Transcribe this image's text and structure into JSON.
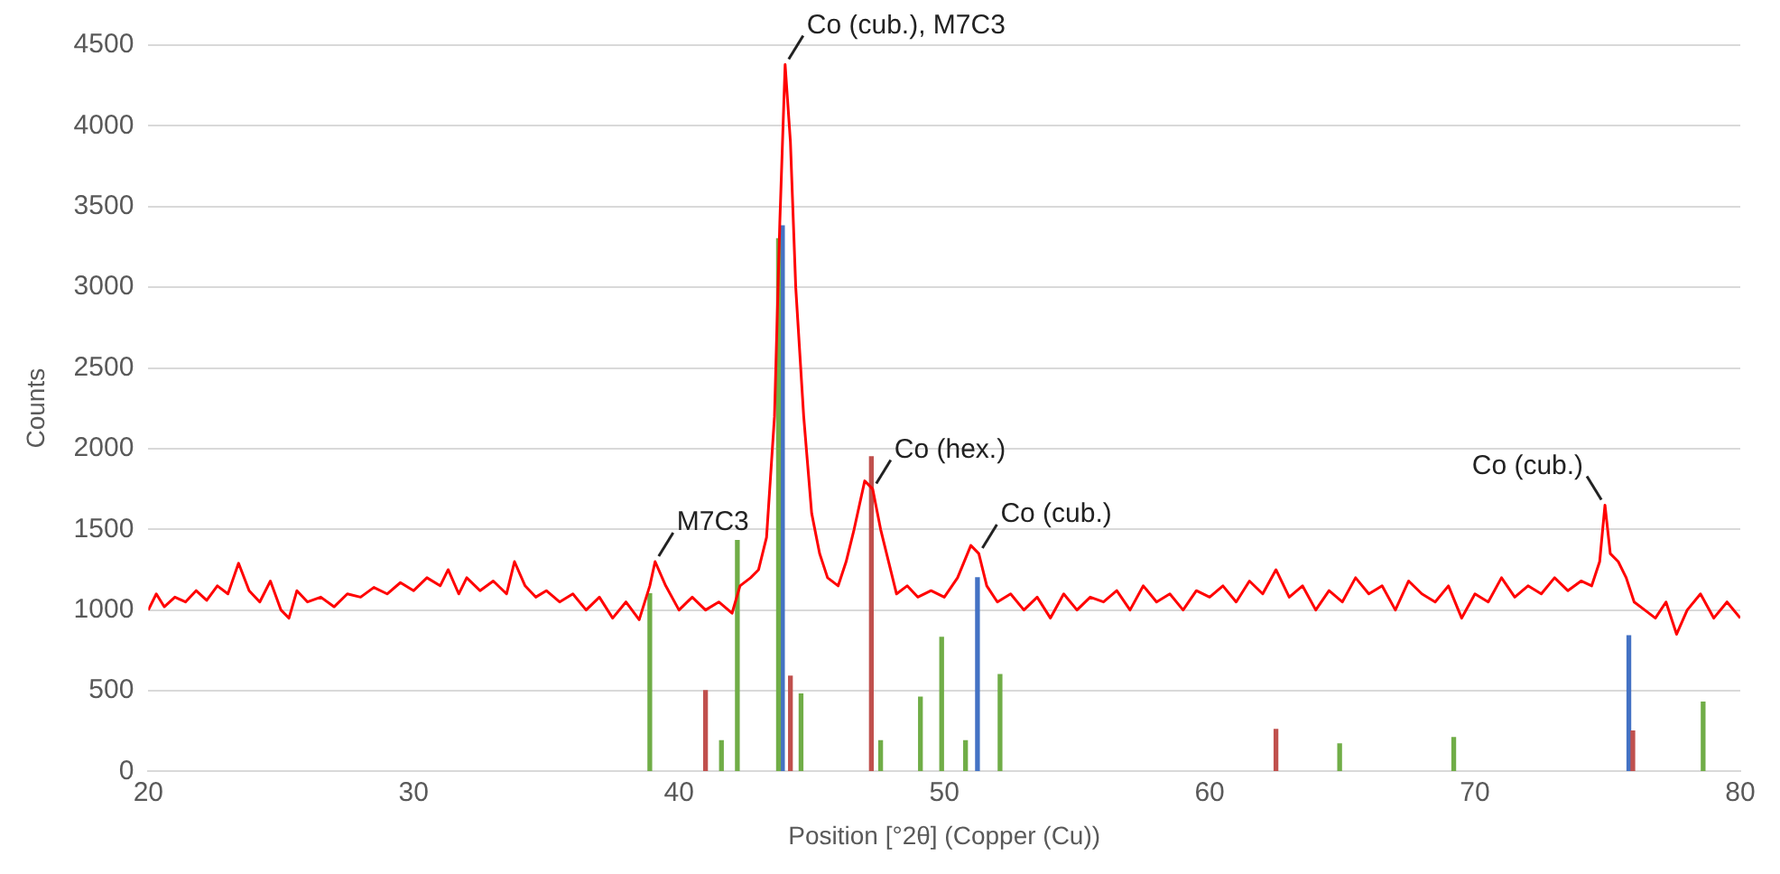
{
  "chart_data": {
    "type": "line",
    "xlabel": "Position [°2θ] (Copper (Cu))",
    "ylabel": "Counts",
    "xlim": [
      20,
      80
    ],
    "xticks": [
      20,
      30,
      40,
      50,
      60,
      70,
      80
    ],
    "ylim": [
      0,
      4500
    ],
    "yticks": [
      0,
      500,
      1000,
      1500,
      2000,
      2500,
      3000,
      3500,
      4000,
      4500
    ],
    "grid": "y",
    "legend": false,
    "marker": "none",
    "series": [
      {
        "color": "#ff0000",
        "x": [
          20,
          20.3,
          20.6,
          21,
          21.4,
          21.8,
          22.2,
          22.6,
          23,
          23.4,
          23.8,
          24.2,
          24.6,
          25,
          25.3,
          25.6,
          26,
          26.5,
          27,
          27.5,
          28,
          28.5,
          29,
          29.5,
          30,
          30.5,
          31,
          31.3,
          31.7,
          32,
          32.5,
          33,
          33.5,
          33.8,
          34.2,
          34.6,
          35,
          35.5,
          36,
          36.5,
          37,
          37.5,
          38,
          38.5,
          38.9,
          39.1,
          39.5,
          40,
          40.5,
          41,
          41.5,
          42,
          42.3,
          42.7,
          43,
          43.3,
          43.6,
          43.8,
          44,
          44.2,
          44.4,
          44.7,
          45,
          45.3,
          45.6,
          46,
          46.3,
          46.6,
          47,
          47.3,
          47.6,
          47.9,
          48.2,
          48.6,
          49,
          49.5,
          50,
          50.5,
          51,
          51.3,
          51.6,
          52,
          52.5,
          53,
          53.5,
          54,
          54.5,
          55,
          55.5,
          56,
          56.5,
          57,
          57.5,
          58,
          58.5,
          59,
          59.5,
          60,
          60.5,
          61,
          61.5,
          62,
          62.5,
          63,
          63.5,
          64,
          64.5,
          65,
          65.5,
          66,
          66.5,
          67,
          67.5,
          68,
          68.5,
          69,
          69.5,
          70,
          70.5,
          71,
          71.5,
          72,
          72.5,
          73,
          73.5,
          74,
          74.4,
          74.7,
          74.9,
          75.1,
          75.4,
          75.7,
          76,
          76.4,
          76.8,
          77.2,
          77.6,
          78,
          78.5,
          79,
          79.5,
          80
        ],
        "values": [
          1000,
          1100,
          1020,
          1080,
          1050,
          1120,
          1060,
          1150,
          1100,
          1290,
          1120,
          1050,
          1180,
          1000,
          950,
          1120,
          1050,
          1080,
          1020,
          1100,
          1080,
          1140,
          1100,
          1170,
          1120,
          1200,
          1150,
          1250,
          1100,
          1200,
          1120,
          1180,
          1100,
          1300,
          1150,
          1080,
          1120,
          1050,
          1100,
          1000,
          1080,
          950,
          1050,
          940,
          1150,
          1300,
          1150,
          1000,
          1080,
          1000,
          1050,
          980,
          1150,
          1200,
          1250,
          1450,
          2200,
          3400,
          4380,
          3900,
          3000,
          2200,
          1600,
          1350,
          1200,
          1150,
          1300,
          1500,
          1800,
          1750,
          1500,
          1300,
          1100,
          1150,
          1080,
          1120,
          1080,
          1200,
          1400,
          1350,
          1150,
          1050,
          1100,
          1000,
          1080,
          950,
          1100,
          1000,
          1080,
          1050,
          1120,
          1000,
          1150,
          1050,
          1100,
          1000,
          1120,
          1080,
          1150,
          1050,
          1180,
          1100,
          1250,
          1080,
          1150,
          1000,
          1120,
          1050,
          1200,
          1100,
          1150,
          1000,
          1180,
          1100,
          1050,
          1150,
          950,
          1100,
          1050,
          1200,
          1080,
          1150,
          1100,
          1200,
          1120,
          1180,
          1150,
          1300,
          1650,
          1350,
          1300,
          1200,
          1050,
          1000,
          950,
          1050,
          850,
          1000,
          1100,
          950,
          1050,
          950
        ]
      },
      {
        "type": "bar",
        "color": "#70ad47",
        "x": [
          38.9,
          41.6,
          42.2,
          43.75,
          44.6,
          47.6,
          49.1,
          49.9,
          50.8,
          52.1,
          64.9,
          69.2,
          78.6
        ],
        "values": [
          1100,
          190,
          1430,
          3300,
          480,
          190,
          460,
          830,
          190,
          600,
          170,
          210,
          430
        ]
      },
      {
        "type": "bar",
        "color": "#c0504d",
        "x": [
          41.0,
          44.2,
          47.25,
          62.5,
          75.95
        ],
        "values": [
          500,
          590,
          1950,
          260,
          250
        ]
      },
      {
        "type": "bar",
        "color": "#4472c4",
        "x": [
          43.9,
          51.25,
          75.8
        ],
        "values": [
          3380,
          1200,
          840
        ]
      }
    ],
    "annotations": [
      {
        "text": "M7C3",
        "x": 39.1,
        "y": 1300
      },
      {
        "text": "Co (cub.), M7C3",
        "x": 44,
        "y": 4380
      },
      {
        "text": "Co (hex.)",
        "x": 47.3,
        "y": 1750
      },
      {
        "text": "Co (cub.)",
        "x": 51.3,
        "y": 1350
      },
      {
        "text": "Co (cub.)",
        "x": 74.9,
        "y": 1650
      }
    ]
  }
}
